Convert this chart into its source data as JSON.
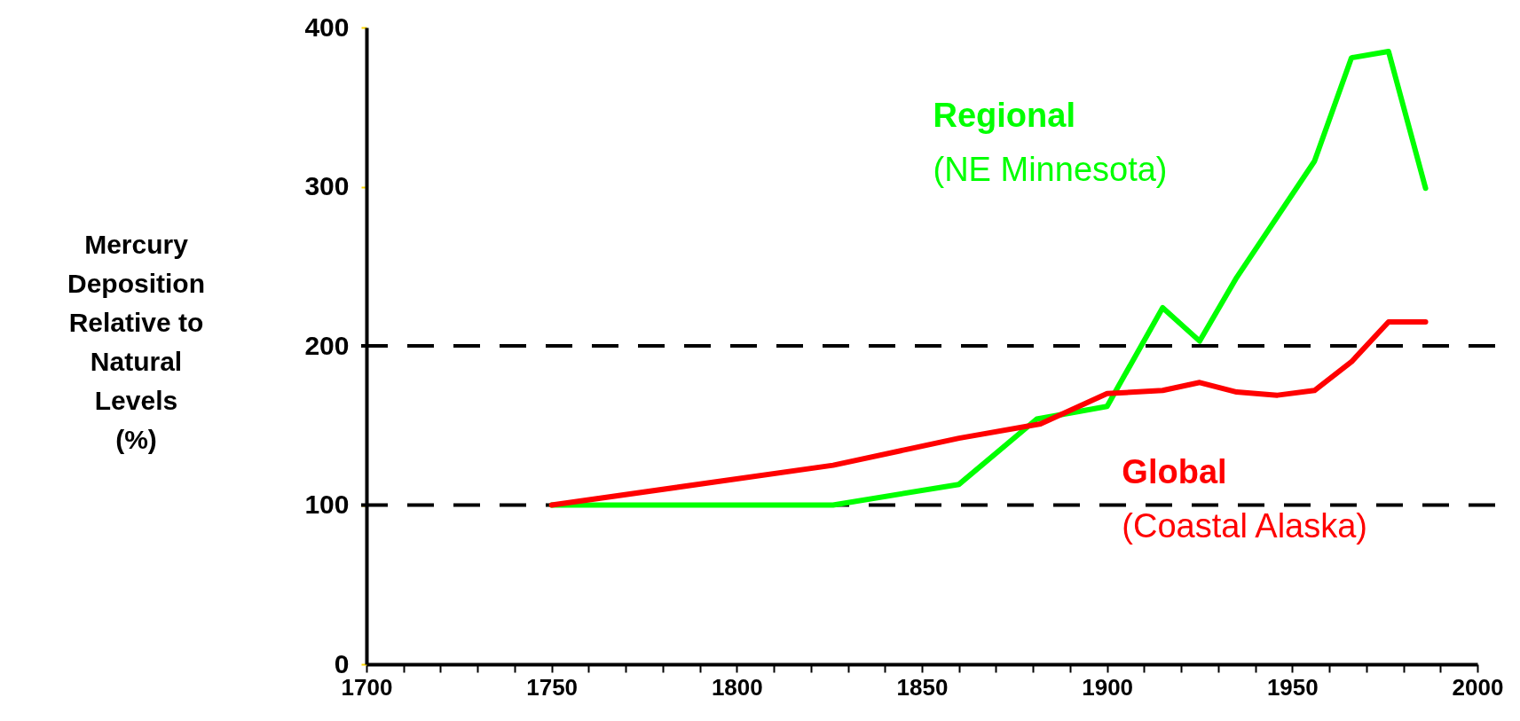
{
  "chart_data": {
    "type": "line",
    "ylabel": "Mercury Deposition Relative to Natural Levels (%)",
    "xlim": [
      1700,
      2000
    ],
    "ylim": [
      0,
      400
    ],
    "xticks": [
      1700,
      {
        "value": 1710,
        "label": null
      },
      {
        "value": 1720,
        "label": null
      },
      {
        "value": 1730,
        "label": null
      },
      {
        "value": 1740,
        "label": null
      },
      1750,
      {
        "value": 1760,
        "label": null
      },
      {
        "value": 1770,
        "label": null
      },
      {
        "value": 1780,
        "label": null
      },
      {
        "value": 1790,
        "label": null
      },
      1800,
      {
        "value": 1810,
        "label": null
      },
      {
        "value": 1820,
        "label": null
      },
      {
        "value": 1830,
        "label": null
      },
      {
        "value": 1840,
        "label": null
      },
      1850,
      {
        "value": 1860,
        "label": null
      },
      {
        "value": 1870,
        "label": null
      },
      {
        "value": 1880,
        "label": null
      },
      {
        "value": 1890,
        "label": null
      },
      1900,
      {
        "value": 1910,
        "label": null
      },
      {
        "value": 1920,
        "label": null
      },
      {
        "value": 1930,
        "label": null
      },
      {
        "value": 1940,
        "label": null
      },
      1950,
      {
        "value": 1960,
        "label": null
      },
      {
        "value": 1970,
        "label": null
      },
      {
        "value": 1980,
        "label": null
      },
      {
        "value": 1990,
        "label": null
      },
      2000
    ],
    "yticks": [
      0,
      100,
      200,
      300,
      400
    ],
    "grid": false,
    "marker": "none",
    "line_style": "solid",
    "ref_lines": [
      {
        "axis": "y",
        "value": 200,
        "color": "#000000",
        "line_style": "dashed"
      },
      {
        "axis": "y",
        "value": 100,
        "color": "#000000",
        "line_style": "dashed"
      }
    ],
    "series": [
      {
        "name": "Regional",
        "color": "#00ff00",
        "x": [
          1750,
          1826,
          1860,
          1881,
          1900,
          1915,
          1925,
          1935,
          1956,
          1966,
          1976,
          1986
        ],
        "values": [
          100,
          100,
          113,
          154,
          162,
          224,
          203,
          243,
          316,
          381,
          385,
          299
        ]
      },
      {
        "name": "Global",
        "color": "#ff0000",
        "x": [
          1750,
          1826,
          1860,
          1882,
          1900,
          1915,
          1925,
          1935,
          1946,
          1956,
          1966,
          1976,
          1986
        ],
        "values": [
          100,
          125,
          142,
          151,
          170,
          172,
          177,
          171,
          169,
          172,
          190,
          215,
          215
        ]
      }
    ],
    "annotations": [
      "(NE Minnesota)",
      "(Coastal Alaska)"
    ]
  }
}
